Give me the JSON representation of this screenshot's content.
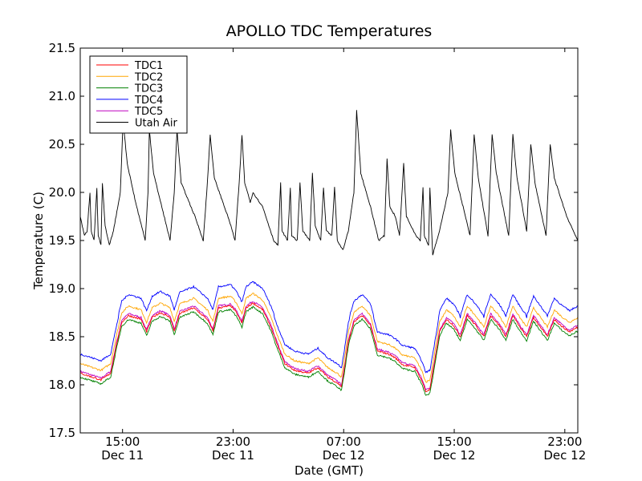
{
  "chart_data": {
    "type": "line",
    "title": "APOLLO TDC Temperatures",
    "xlabel": "Date (GMT)",
    "ylabel": "Temperature (C)",
    "ylim": [
      17.5,
      21.5
    ],
    "xlim_hours": [
      0,
      36
    ],
    "yticks": [
      "17.5",
      "18.0",
      "18.5",
      "19.0",
      "19.5",
      "20.0",
      "20.5",
      "21.0",
      "21.5"
    ],
    "xticks": [
      {
        "time": "15:00",
        "date": "Dec 11",
        "hour": 3.06
      },
      {
        "time": "23:00",
        "date": "Dec 11",
        "hour": 11.06
      },
      {
        "time": "07:00",
        "date": "Dec 12",
        "hour": 19.06
      },
      {
        "time": "15:00",
        "date": "Dec 12",
        "hour": 27.06
      },
      {
        "time": "23:00",
        "date": "Dec 12",
        "hour": 35.06
      }
    ],
    "legend_position": "top-left",
    "series": [
      {
        "name": "TDC1",
        "color": "#ff0000",
        "offset": 0.0
      },
      {
        "name": "TDC2",
        "color": "#ffa500",
        "offset": 0.1
      },
      {
        "name": "TDC3",
        "color": "#008000",
        "offset": -0.04
      },
      {
        "name": "TDC4",
        "color": "#0000ff",
        "offset": 0.2
      },
      {
        "name": "TDC5",
        "color": "#bf00bf",
        "offset": 0.02
      },
      {
        "name": "Utah Air",
        "color": "#000000",
        "offset": 0
      }
    ],
    "tdc_base_points": [
      [
        0.0,
        18.12
      ],
      [
        1.5,
        18.05
      ],
      [
        2.2,
        18.12
      ],
      [
        2.6,
        18.4
      ],
      [
        3.0,
        18.65
      ],
      [
        3.5,
        18.72
      ],
      [
        4.4,
        18.68
      ],
      [
        4.8,
        18.55
      ],
      [
        5.2,
        18.7
      ],
      [
        5.8,
        18.75
      ],
      [
        6.5,
        18.7
      ],
      [
        6.8,
        18.56
      ],
      [
        7.2,
        18.74
      ],
      [
        8.2,
        18.8
      ],
      [
        9.2,
        18.68
      ],
      [
        9.6,
        18.56
      ],
      [
        10.0,
        18.8
      ],
      [
        10.9,
        18.82
      ],
      [
        11.3,
        18.75
      ],
      [
        11.7,
        18.64
      ],
      [
        12.0,
        18.8
      ],
      [
        12.5,
        18.85
      ],
      [
        13.2,
        18.78
      ],
      [
        13.8,
        18.6
      ],
      [
        14.3,
        18.4
      ],
      [
        14.8,
        18.22
      ],
      [
        15.5,
        18.15
      ],
      [
        16.5,
        18.12
      ],
      [
        17.2,
        18.18
      ],
      [
        17.9,
        18.08
      ],
      [
        18.6,
        18.02
      ],
      [
        18.9,
        17.98
      ],
      [
        19.1,
        18.15
      ],
      [
        19.4,
        18.45
      ],
      [
        19.8,
        18.65
      ],
      [
        20.4,
        18.72
      ],
      [
        21.0,
        18.62
      ],
      [
        21.5,
        18.35
      ],
      [
        22.3,
        18.32
      ],
      [
        22.8,
        18.28
      ],
      [
        23.3,
        18.21
      ],
      [
        24.2,
        18.18
      ],
      [
        24.7,
        18.05
      ],
      [
        25.0,
        17.93
      ],
      [
        25.3,
        17.95
      ],
      [
        25.6,
        18.2
      ],
      [
        26.0,
        18.55
      ],
      [
        26.5,
        18.68
      ],
      [
        27.0,
        18.62
      ],
      [
        27.5,
        18.5
      ],
      [
        28.0,
        18.72
      ],
      [
        28.6,
        18.62
      ],
      [
        29.2,
        18.5
      ],
      [
        29.7,
        18.72
      ],
      [
        30.3,
        18.62
      ],
      [
        30.8,
        18.5
      ],
      [
        31.3,
        18.72
      ],
      [
        31.8,
        18.6
      ],
      [
        32.3,
        18.5
      ],
      [
        32.8,
        18.7
      ],
      [
        33.3,
        18.6
      ],
      [
        33.8,
        18.5
      ],
      [
        34.3,
        18.68
      ],
      [
        34.9,
        18.6
      ],
      [
        35.4,
        18.55
      ],
      [
        36.0,
        18.6
      ]
    ],
    "air_points": [
      [
        0.0,
        19.75
      ],
      [
        0.3,
        19.55
      ],
      [
        0.5,
        19.6
      ],
      [
        0.7,
        20.0
      ],
      [
        0.8,
        19.6
      ],
      [
        1.0,
        19.5
      ],
      [
        1.2,
        20.05
      ],
      [
        1.3,
        19.55
      ],
      [
        1.5,
        19.45
      ],
      [
        1.6,
        20.1
      ],
      [
        1.8,
        19.65
      ],
      [
        2.1,
        19.45
      ],
      [
        2.4,
        19.6
      ],
      [
        2.9,
        20.0
      ],
      [
        3.1,
        20.75
      ],
      [
        3.4,
        20.3
      ],
      [
        4.0,
        19.9
      ],
      [
        4.7,
        19.5
      ],
      [
        4.9,
        20.0
      ],
      [
        5.0,
        20.65
      ],
      [
        5.3,
        20.2
      ],
      [
        5.9,
        19.85
      ],
      [
        6.5,
        19.5
      ],
      [
        6.8,
        20.0
      ],
      [
        7.0,
        20.65
      ],
      [
        7.3,
        20.1
      ],
      [
        8.3,
        19.75
      ],
      [
        8.9,
        19.5
      ],
      [
        9.2,
        20.1
      ],
      [
        9.4,
        20.6
      ],
      [
        9.7,
        20.15
      ],
      [
        10.8,
        19.7
      ],
      [
        11.2,
        19.5
      ],
      [
        11.5,
        20.1
      ],
      [
        11.7,
        20.6
      ],
      [
        11.9,
        20.1
      ],
      [
        12.3,
        19.9
      ],
      [
        12.5,
        20.0
      ],
      [
        13.2,
        19.85
      ],
      [
        14.0,
        19.5
      ],
      [
        14.3,
        19.45
      ],
      [
        14.5,
        20.1
      ],
      [
        14.6,
        19.6
      ],
      [
        15.0,
        19.5
      ],
      [
        15.2,
        20.05
      ],
      [
        15.3,
        19.55
      ],
      [
        15.7,
        19.5
      ],
      [
        15.9,
        20.1
      ],
      [
        16.1,
        19.6
      ],
      [
        16.6,
        19.5
      ],
      [
        16.8,
        20.2
      ],
      [
        17.0,
        19.65
      ],
      [
        17.4,
        19.5
      ],
      [
        17.6,
        20.05
      ],
      [
        17.8,
        19.6
      ],
      [
        18.2,
        19.55
      ],
      [
        18.4,
        20.05
      ],
      [
        18.6,
        19.5
      ],
      [
        19.0,
        19.4
      ],
      [
        19.4,
        19.6
      ],
      [
        19.8,
        20.0
      ],
      [
        20.0,
        20.85
      ],
      [
        20.3,
        20.2
      ],
      [
        21.0,
        19.85
      ],
      [
        21.6,
        19.5
      ],
      [
        22.0,
        19.55
      ],
      [
        22.2,
        20.35
      ],
      [
        22.4,
        19.85
      ],
      [
        22.8,
        19.75
      ],
      [
        23.1,
        19.55
      ],
      [
        23.4,
        20.3
      ],
      [
        23.6,
        19.75
      ],
      [
        24.3,
        19.55
      ],
      [
        24.6,
        19.5
      ],
      [
        24.8,
        20.05
      ],
      [
        24.9,
        19.55
      ],
      [
        25.2,
        19.45
      ],
      [
        25.3,
        20.05
      ],
      [
        25.5,
        19.35
      ],
      [
        26.0,
        19.6
      ],
      [
        26.6,
        20.0
      ],
      [
        26.8,
        20.65
      ],
      [
        27.1,
        20.2
      ],
      [
        27.7,
        19.85
      ],
      [
        28.2,
        19.55
      ],
      [
        28.5,
        20.6
      ],
      [
        28.8,
        20.15
      ],
      [
        29.5,
        19.55
      ],
      [
        29.8,
        20.6
      ],
      [
        30.1,
        20.2
      ],
      [
        31.0,
        19.55
      ],
      [
        31.3,
        20.6
      ],
      [
        31.6,
        20.15
      ],
      [
        32.3,
        19.6
      ],
      [
        32.6,
        20.5
      ],
      [
        32.9,
        20.1
      ],
      [
        33.7,
        19.55
      ],
      [
        34.0,
        20.5
      ],
      [
        34.3,
        20.15
      ],
      [
        35.2,
        19.75
      ],
      [
        36.0,
        19.5
      ]
    ]
  }
}
